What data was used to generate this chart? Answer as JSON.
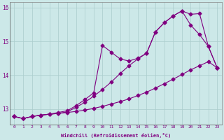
{
  "xlabel": "Windchill (Refroidissement éolien,°C)",
  "bg_color": "#cce8e8",
  "line_color": "#800080",
  "grid_color": "#aacccc",
  "xlim": [
    -0.5,
    23.5
  ],
  "ylim": [
    12.55,
    16.15
  ],
  "yticks": [
    13,
    14,
    15,
    16
  ],
  "xticks": [
    0,
    1,
    2,
    3,
    4,
    5,
    6,
    7,
    8,
    9,
    10,
    11,
    12,
    13,
    14,
    15,
    16,
    17,
    18,
    19,
    20,
    21,
    22,
    23
  ],
  "line1_x": [
    0,
    1,
    2,
    3,
    4,
    5,
    6,
    7,
    8,
    9,
    10,
    11,
    12,
    13,
    14,
    15,
    16,
    17,
    18,
    19,
    20,
    21,
    22,
    23
  ],
  "line1_y": [
    12.78,
    12.72,
    12.78,
    12.82,
    12.85,
    12.87,
    12.9,
    12.93,
    12.97,
    13.02,
    13.08,
    13.15,
    13.22,
    13.3,
    13.4,
    13.5,
    13.62,
    13.75,
    13.88,
    14.02,
    14.16,
    14.28,
    14.4,
    14.22
  ],
  "line2_x": [
    0,
    1,
    2,
    3,
    4,
    5,
    6,
    7,
    8,
    9,
    10,
    11,
    12,
    13,
    14,
    15,
    16,
    17,
    18,
    19,
    20,
    21,
    22,
    23
  ],
  "line2_y": [
    12.78,
    12.72,
    12.78,
    12.82,
    12.85,
    12.87,
    12.92,
    13.05,
    13.2,
    13.38,
    13.58,
    13.8,
    14.05,
    14.28,
    14.48,
    14.65,
    15.28,
    15.55,
    15.75,
    15.9,
    15.48,
    15.2,
    14.85,
    14.22
  ],
  "line3_x": [
    0,
    1,
    2,
    3,
    4,
    5,
    6,
    7,
    8,
    9,
    10,
    11,
    12,
    13,
    14,
    15,
    16,
    17,
    18,
    19,
    20,
    21,
    22,
    23
  ],
  "line3_y": [
    12.78,
    12.72,
    12.78,
    12.82,
    12.85,
    12.9,
    12.95,
    13.1,
    13.28,
    13.48,
    14.88,
    14.68,
    14.48,
    14.42,
    14.5,
    14.65,
    15.28,
    15.55,
    15.75,
    15.9,
    15.8,
    15.82,
    14.85,
    14.22
  ],
  "marker": "D",
  "markersize": 2.5,
  "linewidth": 0.8
}
